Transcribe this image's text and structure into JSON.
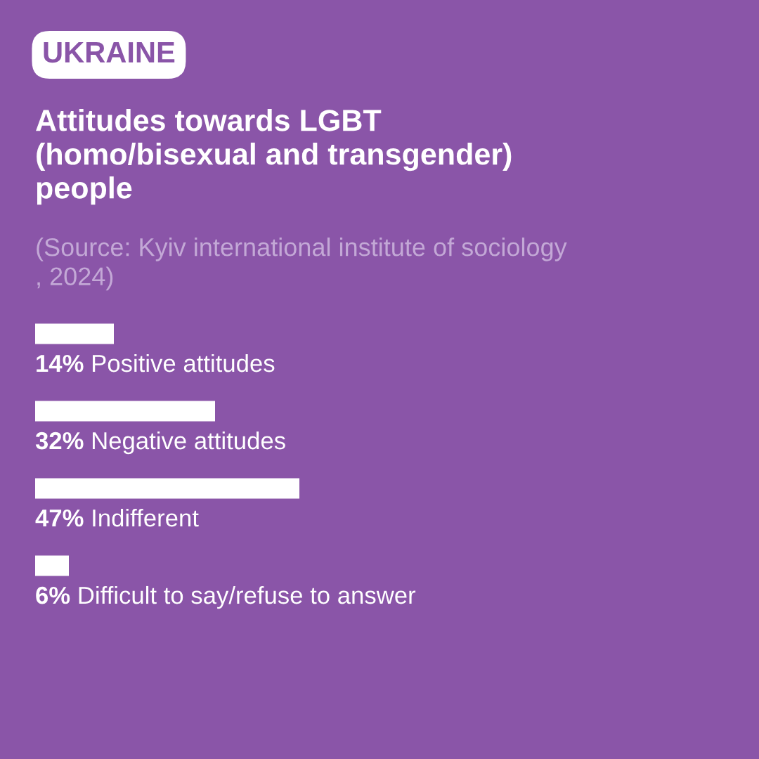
{
  "chart_data": {
    "type": "bar",
    "orientation": "horizontal",
    "title": "Attitudes towards LGBT\n(homo/bisexual and transgender)\npeople",
    "subtitle": "(Source: Kyiv international institute of sociology\n, 2024)",
    "annotations": [
      "UKRAINE"
    ],
    "categories": [
      "Positive attitudes",
      "Negative attitudes",
      "Indifferent",
      "Difficult to say/refuse to answer"
    ],
    "values": [
      14,
      32,
      47,
      6
    ],
    "value_labels": [
      "14%",
      "32%",
      "47%",
      "6%"
    ],
    "color": "#ffffff",
    "tick_labels": false
  }
}
